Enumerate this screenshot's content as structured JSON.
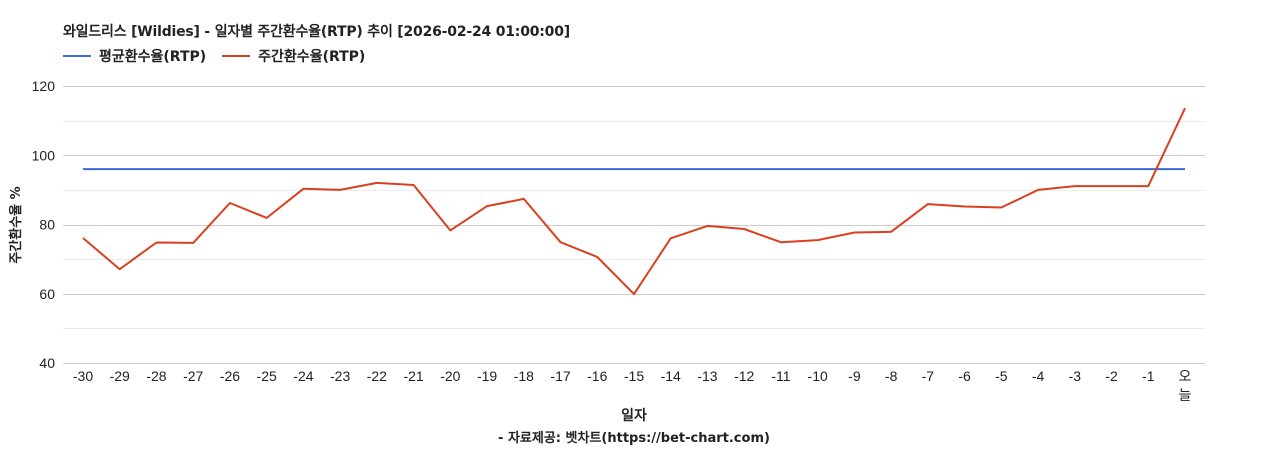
{
  "chart_data": {
    "type": "line",
    "title": "와일드리스 [Wildies] - 일자별 주간환수율(RTP) 추이 [2026-02-24 01:00:00]",
    "xlabel": "일자",
    "ylabel": "주간환수율 %",
    "ylim": [
      40,
      120
    ],
    "yticks": [
      40,
      60,
      80,
      100,
      120
    ],
    "grid": true,
    "legend_position": "top-left",
    "categories": [
      "-30",
      "-29",
      "-28",
      "-27",
      "-26",
      "-25",
      "-24",
      "-23",
      "-22",
      "-21",
      "-20",
      "-19",
      "-18",
      "-17",
      "-16",
      "-15",
      "-14",
      "-13",
      "-12",
      "-11",
      "-10",
      "-9",
      "-8",
      "-7",
      "-6",
      "-5",
      "-4",
      "-3",
      "-2",
      "-1",
      "오늘"
    ],
    "series": [
      {
        "name": "평균환수율(RTP)",
        "color": "#3c6ad6",
        "values": [
          96,
          96,
          96,
          96,
          96,
          96,
          96,
          96,
          96,
          96,
          96,
          96,
          96,
          96,
          96,
          96,
          96,
          96,
          96,
          96,
          96,
          96,
          96,
          96,
          96,
          96,
          96,
          96,
          96,
          96,
          96
        ]
      },
      {
        "name": "주간환수율(RTP)",
        "color": "#d9401f",
        "values": [
          76.1,
          67.1,
          74.8,
          74.7,
          86.2,
          81.9,
          90.3,
          90.0,
          92.0,
          91.4,
          78.3,
          85.3,
          87.4,
          74.9,
          70.6,
          59.9,
          76.0,
          79.6,
          78.7,
          74.9,
          75.5,
          77.7,
          77.9,
          85.9,
          85.2,
          84.9,
          90.0,
          91.1,
          91.1,
          91.1,
          113.6
        ]
      }
    ]
  },
  "header": {
    "title": "와일드리스 [Wildies] - 일자별 주간환수율(RTP) 추이 [2026-02-24 01:00:00]"
  },
  "legend": {
    "items": [
      {
        "label": "평균환수율(RTP)",
        "color": "#3c6ad6"
      },
      {
        "label": "주간환수율(RTP)",
        "color": "#d9401f"
      }
    ]
  },
  "axes": {
    "x_title": "일자",
    "y_title": "주간환수율 %"
  },
  "footer": {
    "credit": "- 자료제공: 벳차트(https://bet-chart.com)"
  }
}
